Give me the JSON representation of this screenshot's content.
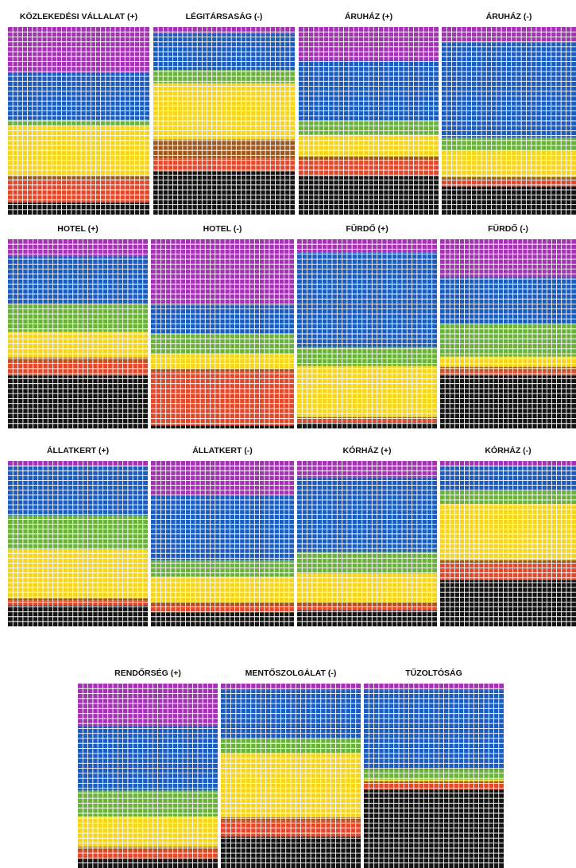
{
  "colors": {
    "purple": "#a532b5",
    "blue": "#1a5cc0",
    "green": "#6bb23a",
    "yellow": "#f7d51d",
    "brown": "#9c5a22",
    "red": "#e3482a",
    "black": "#141414"
  },
  "chart_data": [
    {
      "type": "waffle",
      "title": "KÖZLEKEDÉSI VÁLLALAT (+)",
      "bands": [
        {
          "color": "purple",
          "start": 0,
          "end": 0.245
        },
        {
          "color": "blue",
          "start": 0.245,
          "end": 0.495
        },
        {
          "color": "green",
          "start": 0.495,
          "end": 0.525
        },
        {
          "color": "yellow",
          "start": 0.525,
          "end": 0.795
        },
        {
          "color": "brown",
          "start": 0.795,
          "end": 0.81
        },
        {
          "color": "red",
          "start": 0.81,
          "end": 0.935
        },
        {
          "color": "black",
          "start": 0.935,
          "end": 1
        }
      ]
    },
    {
      "type": "waffle",
      "title": "LÉGITÁRSASÁG (-)",
      "bands": [
        {
          "color": "purple",
          "start": 0,
          "end": 0.035
        },
        {
          "color": "blue",
          "start": 0.035,
          "end": 0.23
        },
        {
          "color": "green",
          "start": 0.23,
          "end": 0.3
        },
        {
          "color": "yellow",
          "start": 0.3,
          "end": 0.6
        },
        {
          "color": "brown",
          "start": 0.6,
          "end": 0.7
        },
        {
          "color": "red",
          "start": 0.7,
          "end": 0.77
        },
        {
          "color": "black",
          "start": 0.77,
          "end": 1
        }
      ]
    },
    {
      "type": "waffle",
      "title": "ÁRUHÁZ (+)",
      "bands": [
        {
          "color": "purple",
          "start": 0,
          "end": 0.18
        },
        {
          "color": "blue",
          "start": 0.18,
          "end": 0.5
        },
        {
          "color": "green",
          "start": 0.5,
          "end": 0.575
        },
        {
          "color": "yellow",
          "start": 0.575,
          "end": 0.69
        },
        {
          "color": "brown",
          "start": 0.69,
          "end": 0.71
        },
        {
          "color": "red",
          "start": 0.71,
          "end": 0.795
        },
        {
          "color": "black",
          "start": 0.795,
          "end": 1
        }
      ]
    },
    {
      "type": "waffle",
      "title": "ÁRUHÁZ (-)",
      "bands": [
        {
          "color": "purple",
          "start": 0,
          "end": 0.085
        },
        {
          "color": "blue",
          "start": 0.085,
          "end": 0.59
        },
        {
          "color": "green",
          "start": 0.59,
          "end": 0.66
        },
        {
          "color": "yellow",
          "start": 0.66,
          "end": 0.8
        },
        {
          "color": "brown",
          "start": 0.8,
          "end": 0.82
        },
        {
          "color": "red",
          "start": 0.82,
          "end": 0.85
        },
        {
          "color": "black",
          "start": 0.85,
          "end": 1
        }
      ]
    },
    {
      "type": "waffle",
      "title": "HOTEL (+)",
      "bands": [
        {
          "color": "purple",
          "start": 0,
          "end": 0.09
        },
        {
          "color": "blue",
          "start": 0.09,
          "end": 0.34
        },
        {
          "color": "green",
          "start": 0.34,
          "end": 0.49
        },
        {
          "color": "yellow",
          "start": 0.49,
          "end": 0.625
        },
        {
          "color": "brown",
          "start": 0.625,
          "end": 0.645
        },
        {
          "color": "red",
          "start": 0.645,
          "end": 0.72
        },
        {
          "color": "black",
          "start": 0.72,
          "end": 1
        }
      ]
    },
    {
      "type": "waffle",
      "title": "HOTEL (-)",
      "bands": [
        {
          "color": "purple",
          "start": 0,
          "end": 0.35
        },
        {
          "color": "blue",
          "start": 0.35,
          "end": 0.5
        },
        {
          "color": "green",
          "start": 0.5,
          "end": 0.605
        },
        {
          "color": "yellow",
          "start": 0.605,
          "end": 0.685
        },
        {
          "color": "brown",
          "start": 0.685,
          "end": 0.7
        },
        {
          "color": "red",
          "start": 0.7,
          "end": 0.985
        },
        {
          "color": "black",
          "start": 0.985,
          "end": 1
        }
      ]
    },
    {
      "type": "waffle",
      "title": "FÜRDŐ (+)",
      "bands": [
        {
          "color": "purple",
          "start": 0,
          "end": 0.07
        },
        {
          "color": "blue",
          "start": 0.07,
          "end": 0.57
        },
        {
          "color": "green",
          "start": 0.57,
          "end": 0.67
        },
        {
          "color": "yellow",
          "start": 0.67,
          "end": 0.94
        },
        {
          "color": "brown",
          "start": 0.94,
          "end": 0.955
        },
        {
          "color": "red",
          "start": 0.955,
          "end": 0.97
        },
        {
          "color": "black",
          "start": 0.97,
          "end": 1
        }
      ]
    },
    {
      "type": "waffle",
      "title": "FÜRDŐ (-)",
      "bands": [
        {
          "color": "purple",
          "start": 0,
          "end": 0.2
        },
        {
          "color": "blue",
          "start": 0.2,
          "end": 0.45
        },
        {
          "color": "green",
          "start": 0.45,
          "end": 0.62
        },
        {
          "color": "yellow",
          "start": 0.62,
          "end": 0.675
        },
        {
          "color": "brown",
          "start": 0.675,
          "end": 0.695
        },
        {
          "color": "red",
          "start": 0.695,
          "end": 0.72
        },
        {
          "color": "black",
          "start": 0.72,
          "end": 1
        }
      ]
    },
    {
      "type": "waffle",
      "title": "ÁLLATKERT (+)",
      "bands": [
        {
          "color": "purple",
          "start": 0,
          "end": 0.03
        },
        {
          "color": "blue",
          "start": 0.03,
          "end": 0.33
        },
        {
          "color": "green",
          "start": 0.33,
          "end": 0.535
        },
        {
          "color": "yellow",
          "start": 0.535,
          "end": 0.83
        },
        {
          "color": "brown",
          "start": 0.83,
          "end": 0.845
        },
        {
          "color": "red",
          "start": 0.845,
          "end": 0.875
        },
        {
          "color": "black",
          "start": 0.875,
          "end": 1
        }
      ]
    },
    {
      "type": "waffle",
      "title": "ÁLLATKERT (-)",
      "bands": [
        {
          "color": "purple",
          "start": 0,
          "end": 0.205
        },
        {
          "color": "blue",
          "start": 0.205,
          "end": 0.6
        },
        {
          "color": "green",
          "start": 0.6,
          "end": 0.7
        },
        {
          "color": "yellow",
          "start": 0.7,
          "end": 0.855
        },
        {
          "color": "brown",
          "start": 0.855,
          "end": 0.875
        },
        {
          "color": "red",
          "start": 0.875,
          "end": 0.915
        },
        {
          "color": "black",
          "start": 0.915,
          "end": 1
        }
      ]
    },
    {
      "type": "waffle",
      "title": "KÓRHÁZ (+)",
      "bands": [
        {
          "color": "purple",
          "start": 0,
          "end": 0.1
        },
        {
          "color": "blue",
          "start": 0.1,
          "end": 0.55
        },
        {
          "color": "green",
          "start": 0.55,
          "end": 0.68
        },
        {
          "color": "yellow",
          "start": 0.68,
          "end": 0.855
        },
        {
          "color": "brown",
          "start": 0.855,
          "end": 0.875
        },
        {
          "color": "red",
          "start": 0.875,
          "end": 0.905
        },
        {
          "color": "black",
          "start": 0.905,
          "end": 1
        }
      ]
    },
    {
      "type": "waffle",
      "title": "KÓRHÁZ (-)",
      "bands": [
        {
          "color": "purple",
          "start": 0,
          "end": 0.03
        },
        {
          "color": "blue",
          "start": 0.03,
          "end": 0.18
        },
        {
          "color": "green",
          "start": 0.18,
          "end": 0.26
        },
        {
          "color": "yellow",
          "start": 0.26,
          "end": 0.6
        },
        {
          "color": "brown",
          "start": 0.6,
          "end": 0.62
        },
        {
          "color": "red",
          "start": 0.62,
          "end": 0.72
        },
        {
          "color": "black",
          "start": 0.72,
          "end": 1
        }
      ]
    },
    {
      "type": "waffle",
      "title": "RENDŐRSÉG (+)",
      "bands": [
        {
          "color": "purple",
          "start": 0,
          "end": 0.23
        },
        {
          "color": "blue",
          "start": 0.23,
          "end": 0.58
        },
        {
          "color": "green",
          "start": 0.58,
          "end": 0.72
        },
        {
          "color": "yellow",
          "start": 0.72,
          "end": 0.885
        },
        {
          "color": "brown",
          "start": 0.885,
          "end": 0.905
        },
        {
          "color": "red",
          "start": 0.905,
          "end": 0.95
        },
        {
          "color": "black",
          "start": 0.95,
          "end": 1
        }
      ]
    },
    {
      "type": "waffle",
      "title": "MENTŐSZOLGÁLAT (-)",
      "bands": [
        {
          "color": "purple",
          "start": 0,
          "end": 0.035
        },
        {
          "color": "blue",
          "start": 0.035,
          "end": 0.3
        },
        {
          "color": "green",
          "start": 0.3,
          "end": 0.38
        },
        {
          "color": "yellow",
          "start": 0.38,
          "end": 0.725
        },
        {
          "color": "brown",
          "start": 0.725,
          "end": 0.745
        },
        {
          "color": "red",
          "start": 0.745,
          "end": 0.83
        },
        {
          "color": "black",
          "start": 0.83,
          "end": 1
        }
      ]
    },
    {
      "type": "waffle",
      "title": "TŰZOLTÓSÁG",
      "bands": [
        {
          "color": "purple",
          "start": 0,
          "end": 0.035
        },
        {
          "color": "blue",
          "start": 0.035,
          "end": 0.465
        },
        {
          "color": "green",
          "start": 0.465,
          "end": 0.52
        },
        {
          "color": "yellow",
          "start": 0.52,
          "end": 0.53
        },
        {
          "color": "brown",
          "start": 0.53,
          "end": 0.54
        },
        {
          "color": "red",
          "start": 0.54,
          "end": 0.575
        },
        {
          "color": "black",
          "start": 0.575,
          "end": 1
        }
      ]
    }
  ]
}
